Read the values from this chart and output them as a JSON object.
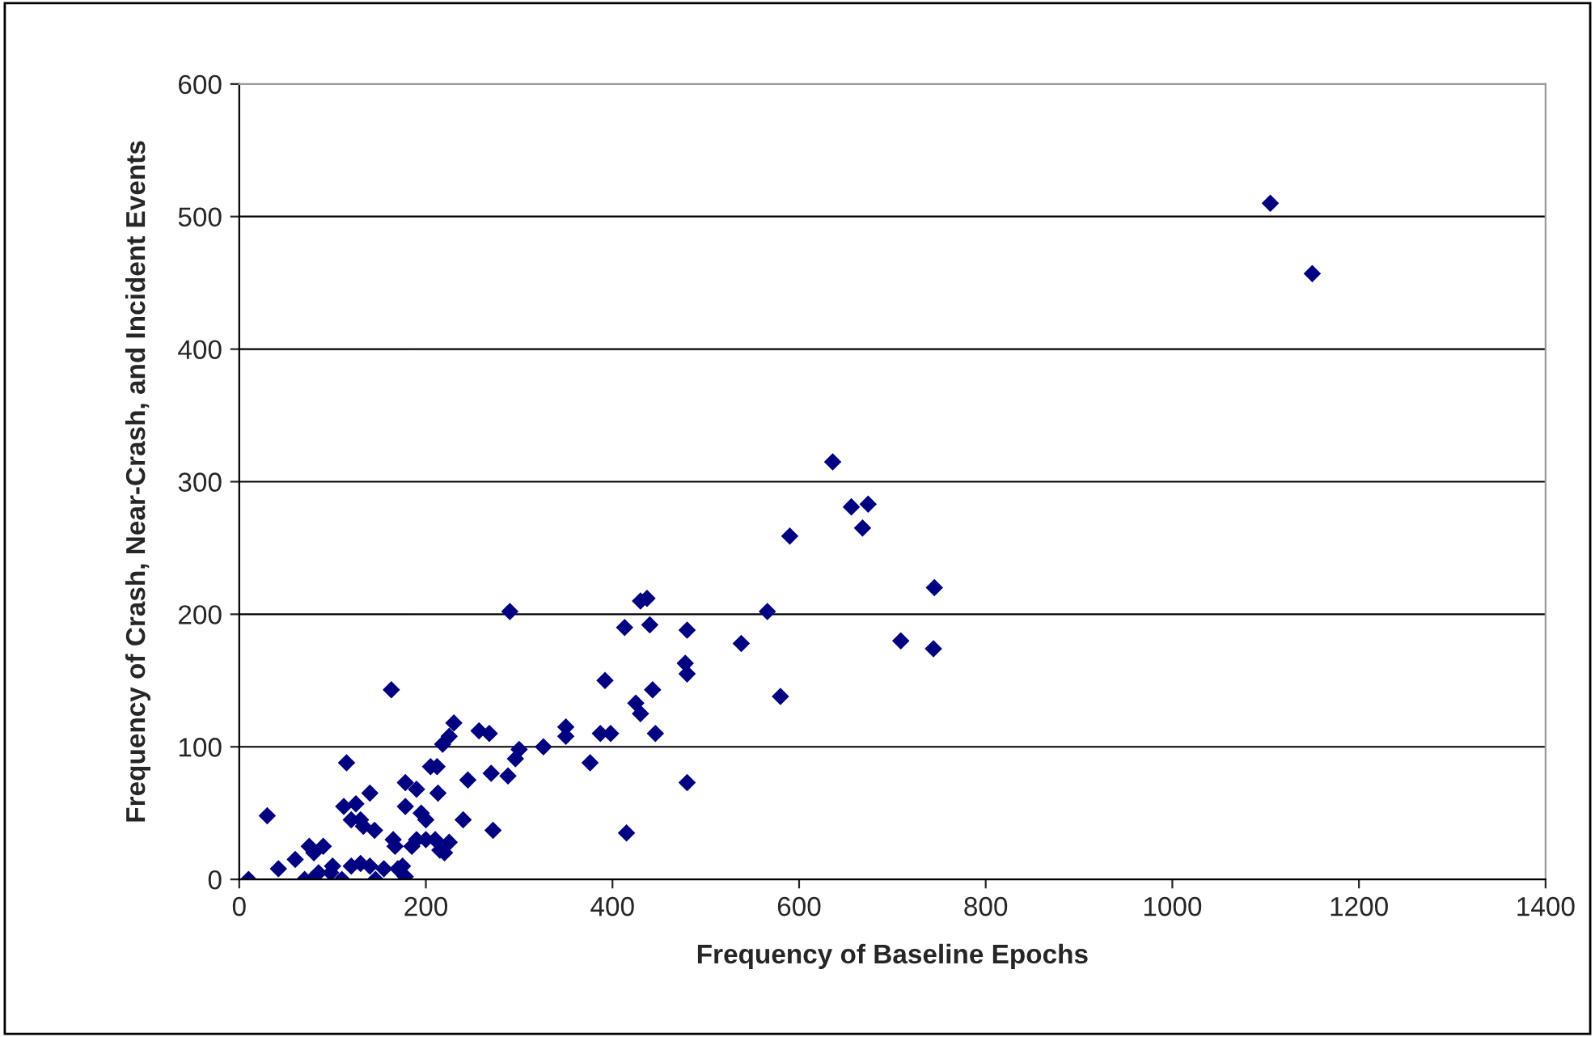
{
  "chart_data": {
    "type": "scatter",
    "xlabel": "Frequency of Baseline Epochs",
    "ylabel": "Frequency of Crash, Near-Crash, and Incident Events",
    "marker": "diamond",
    "grid": "y",
    "legend": false,
    "xlim": [
      0,
      1400
    ],
    "xticks": [
      0,
      200,
      400,
      600,
      800,
      1000,
      1200,
      1400
    ],
    "ylim": [
      0,
      600
    ],
    "yticks": [
      0,
      100,
      200,
      300,
      400,
      500,
      600
    ],
    "series": [
      {
        "color": "#000080",
        "x": [
          1105,
          1150,
          636,
          656,
          674,
          668,
          590,
          745,
          709,
          744,
          566,
          538,
          580,
          290,
          413,
          430,
          437,
          440,
          480,
          425,
          430,
          443,
          446,
          478,
          480,
          392,
          387,
          398,
          376,
          415,
          480,
          350,
          350,
          326,
          300,
          296,
          288,
          270,
          272,
          245,
          257,
          268,
          230,
          225,
          218,
          212,
          205,
          213,
          200,
          190,
          195,
          178,
          178,
          163,
          167,
          165,
          185,
          190,
          200,
          210,
          215,
          225,
          240,
          220,
          175,
          170,
          178,
          146,
          155,
          140,
          130,
          120,
          110,
          112,
          115,
          125,
          120,
          133,
          140,
          145,
          100,
          90,
          85,
          80,
          75,
          70,
          78,
          60,
          42,
          30,
          10,
          98,
          130
        ],
        "values": [
          510,
          457,
          315,
          281,
          283,
          265,
          259,
          220,
          180,
          174,
          202,
          178,
          138,
          202,
          190,
          210,
          212,
          192,
          188,
          133,
          125,
          143,
          110,
          163,
          155,
          150,
          110,
          110,
          88,
          35,
          73,
          115,
          108,
          100,
          98,
          91,
          78,
          80,
          37,
          75,
          112,
          110,
          118,
          108,
          102,
          85,
          85,
          65,
          45,
          68,
          50,
          73,
          55,
          143,
          25,
          30,
          25,
          30,
          30,
          30,
          22,
          28,
          45,
          20,
          10,
          8,
          2,
          0,
          8,
          10,
          12,
          10,
          0,
          55,
          88,
          57,
          45,
          40,
          65,
          37,
          10,
          25,
          5,
          20,
          25,
          0,
          0,
          15,
          8,
          48,
          0,
          5,
          45
        ]
      }
    ]
  }
}
